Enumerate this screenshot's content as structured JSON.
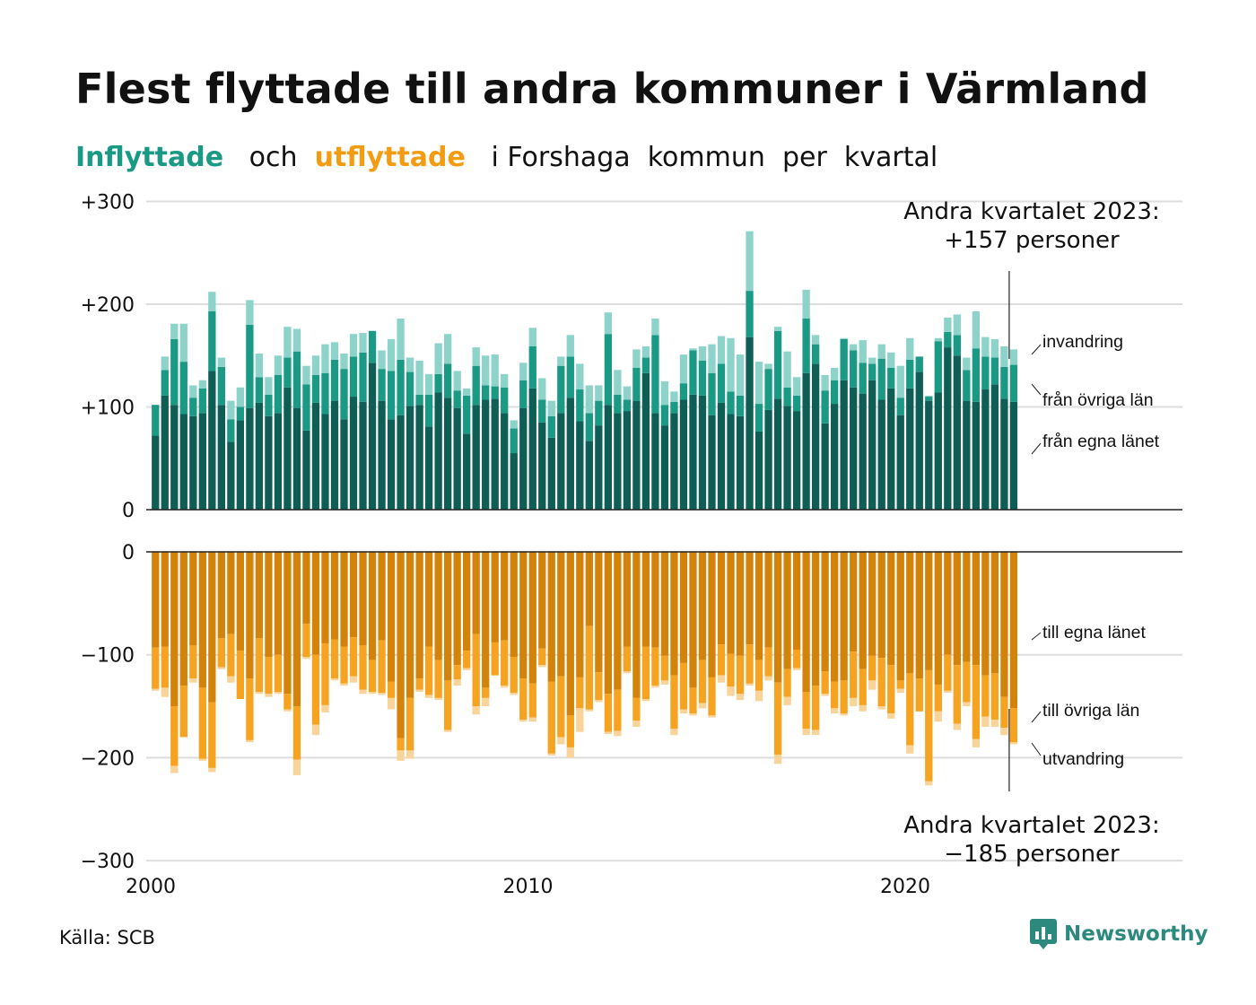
{
  "title": "Flest flyttade till andra kommuner i Värmland",
  "subtitle": {
    "part1": "Inflyttade",
    "part2": "och",
    "part3": "utflyttade",
    "part4": "i Forshaga  kommun  per  kvartal"
  },
  "source": "Källa: SCB",
  "logo_text": "Newsworthy",
  "colors": {
    "in_own": "#0e5e55",
    "in_other": "#1a9985",
    "in_immigration": "#8dd3ca",
    "out_own": "#d4830a",
    "out_other": "#f5a320",
    "out_emigration": "#f8d49a",
    "grid": "#dddddd",
    "text": "#111111"
  },
  "chart_data": {
    "type": "bar",
    "stacked": true,
    "x_start": 2000,
    "quarters_per_year": 4,
    "xticks": [
      "2000",
      "2010",
      "2020"
    ],
    "xlim": [
      2000,
      2027.5
    ],
    "top_panel": {
      "yticks": [
        "0",
        "+100",
        "+200",
        "+300"
      ],
      "ylim": [
        0,
        300
      ],
      "series_labels": [
        "från egna länet",
        "från övriga län",
        "invandring"
      ],
      "annotation_line1": "Andra kvartalet 2023:",
      "annotation_line2": "+157 personer",
      "series": [
        {
          "name": "från egna länet",
          "values": [
            72,
            111,
            102,
            93,
            91,
            94,
            135,
            102,
            66,
            87,
            99,
            104,
            91,
            94,
            119,
            99,
            77,
            104,
            93,
            106,
            88,
            110,
            105,
            143,
            106,
            88,
            92,
            101,
            102,
            81,
            114,
            109,
            99,
            74,
            102,
            107,
            108,
            94,
            55,
            99,
            118,
            85,
            70,
            94,
            109,
            86,
            67,
            82,
            102,
            94,
            96,
            106,
            133,
            94,
            82,
            94,
            107,
            112,
            111,
            92,
            104,
            93,
            91,
            168,
            76,
            97,
            108,
            101,
            96,
            133,
            142,
            84,
            103,
            126,
            119,
            113,
            126,
            107,
            118,
            92,
            118,
            134,
            106,
            114,
            158,
            150,
            106,
            105,
            117,
            122,
            108,
            105
          ]
        },
        {
          "name": "från övriga län",
          "values": [
            30,
            25,
            64,
            51,
            18,
            24,
            58,
            37,
            22,
            13,
            81,
            25,
            21,
            37,
            29,
            55,
            45,
            27,
            40,
            40,
            49,
            39,
            48,
            31,
            31,
            47,
            54,
            33,
            10,
            31,
            18,
            33,
            17,
            37,
            38,
            14,
            12,
            25,
            24,
            27,
            41,
            22,
            21,
            46,
            40,
            31,
            27,
            24,
            69,
            18,
            11,
            32,
            15,
            76,
            20,
            11,
            16,
            43,
            34,
            41,
            38,
            22,
            20,
            45,
            27,
            40,
            66,
            18,
            15,
            53,
            19,
            32,
            23,
            40,
            36,
            30,
            16,
            40,
            20,
            17,
            28,
            15,
            4,
            50,
            15,
            20,
            30,
            52,
            32,
            26,
            31,
            36
          ]
        },
        {
          "name": "invandring",
          "values": [
            0,
            13,
            15,
            37,
            12,
            8,
            19,
            9,
            18,
            19,
            24,
            23,
            17,
            19,
            30,
            22,
            18,
            19,
            28,
            17,
            15,
            22,
            19,
            0,
            18,
            31,
            40,
            14,
            33,
            20,
            30,
            29,
            19,
            7,
            18,
            29,
            31,
            13,
            8,
            17,
            18,
            21,
            15,
            9,
            21,
            25,
            27,
            15,
            21,
            24,
            13,
            18,
            11,
            16,
            23,
            10,
            28,
            2,
            14,
            28,
            27,
            52,
            40,
            58,
            41,
            5,
            4,
            35,
            18,
            28,
            9,
            15,
            12,
            1,
            6,
            22,
            6,
            14,
            15,
            31,
            21,
            0,
            1,
            3,
            14,
            20,
            12,
            36,
            19,
            18,
            20,
            15
          ]
        }
      ]
    },
    "bottom_panel": {
      "yticks": [
        "0",
        "−100",
        "−200",
        "−300"
      ],
      "ylim": [
        -300,
        0
      ],
      "series_labels": [
        "till egna länet",
        "till övriga län",
        "utvandring"
      ],
      "annotation_line1": "Andra kvartalet 2023:",
      "annotation_line2": "−185 personer",
      "series": [
        {
          "name": "till egna länet",
          "values": [
            -93,
            -92,
            -150,
            -130,
            -91,
            -132,
            -146,
            -84,
            -80,
            -96,
            -123,
            -84,
            -102,
            -100,
            -138,
            -150,
            -70,
            -100,
            -89,
            -85,
            -92,
            -83,
            -91,
            -105,
            -86,
            -126,
            -181,
            -142,
            -123,
            -92,
            -105,
            -125,
            -110,
            -96,
            -80,
            -132,
            -88,
            -86,
            -102,
            -123,
            -128,
            -94,
            -126,
            -121,
            -159,
            -122,
            -72,
            -117,
            -138,
            -134,
            -92,
            -142,
            -92,
            -93,
            -101,
            -120,
            -108,
            -132,
            -105,
            -122,
            -90,
            -99,
            -101,
            -90,
            -105,
            -93,
            -127,
            -114,
            -95,
            -136,
            -130,
            -116,
            -126,
            -125,
            -97,
            -114,
            -101,
            -103,
            -110,
            -125,
            -118,
            -123,
            -115,
            -129,
            -100,
            -110,
            -107,
            -110,
            -120,
            -118,
            -141,
            -152
          ]
        },
        {
          "name": "till övriga län",
          "values": [
            -40,
            -40,
            -58,
            -50,
            -32,
            -69,
            -64,
            -28,
            -41,
            -47,
            -60,
            -52,
            -36,
            -36,
            -15,
            -52,
            -32,
            -68,
            -60,
            -38,
            -36,
            -38,
            -43,
            -31,
            -51,
            -16,
            -12,
            -51,
            -11,
            -47,
            -37,
            -48,
            -14,
            -17,
            -70,
            -10,
            -32,
            -44,
            -35,
            -40,
            -33,
            -16,
            -70,
            -59,
            -31,
            -30,
            -81,
            -27,
            -37,
            -40,
            -24,
            -22,
            -51,
            -37,
            -24,
            -52,
            -45,
            -25,
            -42,
            -37,
            -30,
            -32,
            -37,
            -38,
            -30,
            -28,
            -70,
            -27,
            -18,
            -36,
            -43,
            -22,
            -26,
            -32,
            -45,
            -35,
            -24,
            -47,
            -47,
            -8,
            -70,
            -32,
            -108,
            -26,
            -35,
            -57,
            -39,
            -72,
            -40,
            -45,
            -30,
            -33
          ]
        },
        {
          "name": "utvandring",
          "values": [
            -2,
            -9,
            -7,
            0,
            -4,
            -2,
            -4,
            -2,
            -6,
            0,
            -2,
            -2,
            -3,
            -2,
            -2,
            -15,
            -2,
            -10,
            -7,
            -2,
            -2,
            -6,
            -4,
            -2,
            -2,
            -11,
            -10,
            -8,
            -2,
            -3,
            -2,
            -2,
            -6,
            -2,
            -8,
            -8,
            0,
            -2,
            -2,
            -2,
            -4,
            -2,
            -2,
            -7,
            -10,
            -23,
            -2,
            -2,
            -2,
            -5,
            -2,
            -6,
            -2,
            -2,
            -4,
            -6,
            -4,
            -2,
            -5,
            -2,
            -7,
            -9,
            -6,
            -2,
            -10,
            -4,
            -9,
            -8,
            -2,
            -6,
            -5,
            -2,
            -5,
            -2,
            -8,
            -6,
            -9,
            -3,
            -5,
            -4,
            -8,
            0,
            -4,
            -10,
            -2,
            -6,
            -4,
            -8,
            -10,
            -7,
            -7,
            -2
          ]
        }
      ]
    }
  }
}
